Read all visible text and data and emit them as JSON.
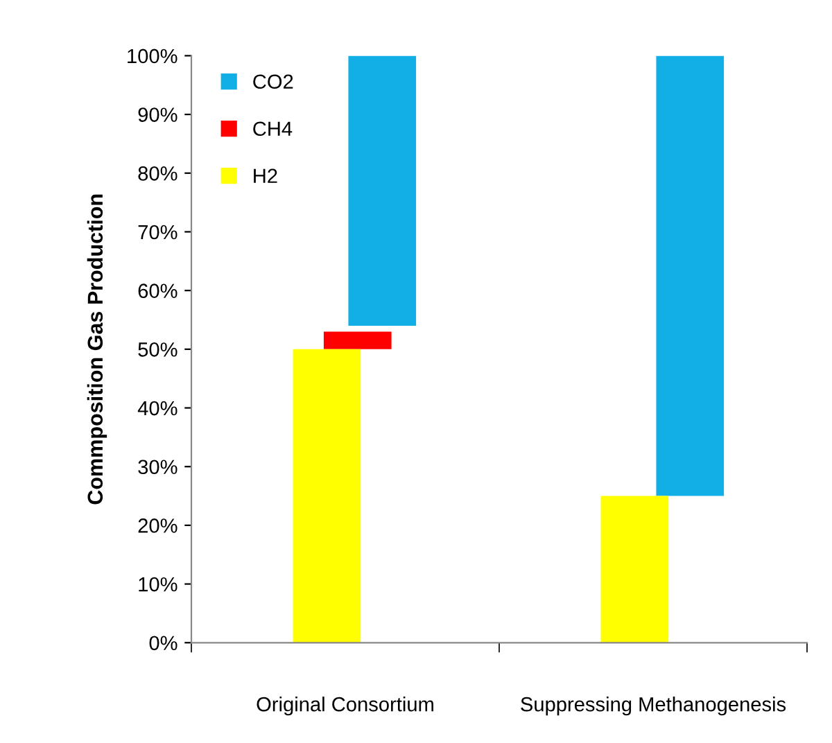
{
  "chart_data": {
    "type": "bar",
    "ylabel": "Commposition Gas Production",
    "categories": [
      "Original Consortium",
      "Suppressing Methanogenesis"
    ],
    "series": [
      {
        "name": "CO2",
        "color": "#12aee6",
        "values": [
          46,
          75
        ],
        "base": [
          54,
          25
        ]
      },
      {
        "name": "CH4",
        "color": "#ff0000",
        "values": [
          3,
          null
        ],
        "base": [
          50,
          null
        ]
      },
      {
        "name": "H2",
        "color": "#ffff00",
        "values": [
          50,
          25
        ],
        "base": [
          0,
          0
        ]
      }
    ],
    "ylim": [
      0,
      100
    ],
    "yticks": [
      {
        "value": 0,
        "label": "0%"
      },
      {
        "value": 10,
        "label": "10%"
      },
      {
        "value": 20,
        "label": "20%"
      },
      {
        "value": 30,
        "label": "30%"
      },
      {
        "value": 40,
        "label": "40%"
      },
      {
        "value": 50,
        "label": "50%"
      },
      {
        "value": 60,
        "label": "60%"
      },
      {
        "value": 70,
        "label": "70%"
      },
      {
        "value": 80,
        "label": "80%"
      },
      {
        "value": 90,
        "label": "90%"
      },
      {
        "value": 100,
        "label": "100%"
      }
    ],
    "grid": false,
    "legend": "top left"
  }
}
